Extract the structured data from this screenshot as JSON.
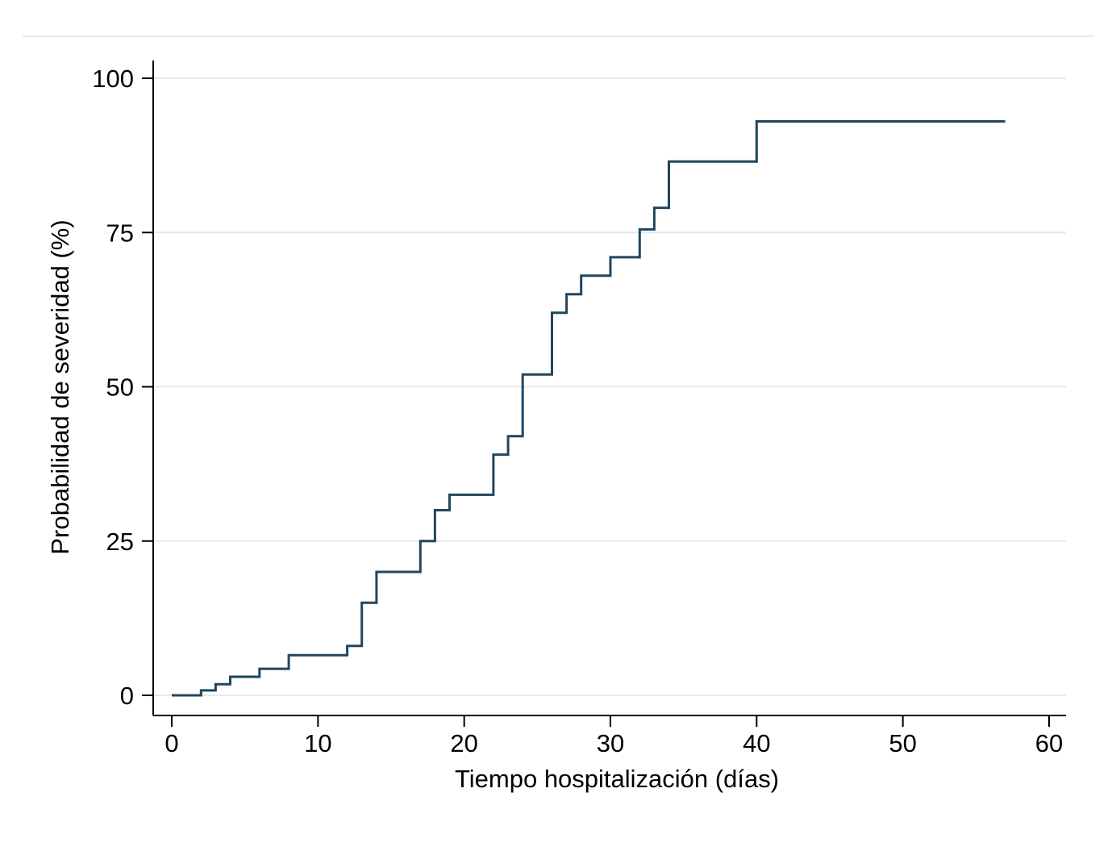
{
  "page": {
    "background": "#ffffff"
  },
  "chart_data": {
    "type": "step",
    "title": "",
    "xlabel": "Tiempo hospitalización (días)",
    "ylabel": "Probabilidad de severidad (%)",
    "xlim": [
      0,
      62
    ],
    "ylim": [
      0,
      100
    ],
    "xticks": [
      0,
      10,
      20,
      30,
      40,
      50,
      60
    ],
    "yticks": [
      0,
      25,
      50,
      75,
      100
    ],
    "grid": "horizontal gridlines at y ticks",
    "legend": "none",
    "line_color": "#204660",
    "grid_color": "#e8e9ec",
    "axis_color": "#000000",
    "points": [
      [
        0,
        0
      ],
      [
        2,
        0.8
      ],
      [
        3,
        1.8
      ],
      [
        4,
        3
      ],
      [
        6,
        4.3
      ],
      [
        8,
        6.5
      ],
      [
        12,
        8
      ],
      [
        13,
        15
      ],
      [
        14,
        20
      ],
      [
        17,
        25
      ],
      [
        18,
        30
      ],
      [
        19,
        32.5
      ],
      [
        22,
        39
      ],
      [
        23,
        42
      ],
      [
        24,
        52
      ],
      [
        26,
        62
      ],
      [
        27,
        65
      ],
      [
        28,
        68
      ],
      [
        30,
        71
      ],
      [
        32,
        75.5
      ],
      [
        33,
        79
      ],
      [
        34,
        86.5
      ],
      [
        40,
        93
      ],
      [
        57,
        93
      ]
    ]
  }
}
